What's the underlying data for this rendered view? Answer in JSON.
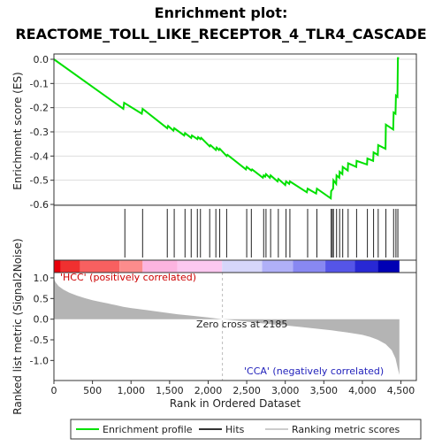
{
  "chart_data": {
    "type": "line",
    "title_line1": "Enrichment plot:",
    "title_line2": "REACTOME_TOLL_LIKE_RECEPTOR_4_TLR4_CASCADE",
    "es_panel": {
      "ylabel": "Enrichment score (ES)",
      "ylim": [
        -0.6,
        0.0
      ],
      "yticks": [
        "0.0",
        "-0.1",
        "-0.2",
        "-0.3",
        "-0.4",
        "-0.5",
        "-0.6"
      ],
      "grid": true,
      "series": [
        {
          "name": "Enrichment profile",
          "color": "#00e000",
          "x": [
            0,
            900,
            910,
            1140,
            1150,
            1470,
            1480,
            1550,
            1560,
            1690,
            1700,
            1780,
            1790,
            1860,
            1870,
            1900,
            1910,
            2020,
            2030,
            2100,
            2110,
            2140,
            2150,
            2240,
            2250,
            2490,
            2500,
            2560,
            2570,
            2710,
            2720,
            2740,
            2750,
            2800,
            2810,
            2900,
            2910,
            3000,
            3010,
            3050,
            3060,
            3280,
            3290,
            3400,
            3410,
            3590,
            3595,
            3620,
            3625,
            3660,
            3665,
            3700,
            3705,
            3740,
            3745,
            3810,
            3815,
            3920,
            3925,
            4060,
            4065,
            4140,
            4145,
            4200,
            4205,
            4300,
            4305,
            4400,
            4405,
            4430,
            4435,
            4455,
            4460,
            4475
          ],
          "y": [
            0.0,
            -0.205,
            -0.18,
            -0.225,
            -0.205,
            -0.285,
            -0.275,
            -0.295,
            -0.285,
            -0.315,
            -0.305,
            -0.325,
            -0.315,
            -0.33,
            -0.322,
            -0.33,
            -0.325,
            -0.36,
            -0.355,
            -0.375,
            -0.365,
            -0.375,
            -0.37,
            -0.4,
            -0.395,
            -0.455,
            -0.445,
            -0.46,
            -0.455,
            -0.49,
            -0.48,
            -0.485,
            -0.475,
            -0.49,
            -0.48,
            -0.505,
            -0.495,
            -0.52,
            -0.505,
            -0.515,
            -0.505,
            -0.55,
            -0.535,
            -0.555,
            -0.535,
            -0.575,
            -0.545,
            -0.535,
            -0.5,
            -0.515,
            -0.48,
            -0.49,
            -0.465,
            -0.475,
            -0.445,
            -0.46,
            -0.43,
            -0.445,
            -0.42,
            -0.435,
            -0.41,
            -0.42,
            -0.385,
            -0.395,
            -0.355,
            -0.37,
            -0.27,
            -0.29,
            -0.22,
            -0.225,
            -0.15,
            -0.155,
            0.005,
            0.005
          ]
        }
      ]
    },
    "hits_panel": {
      "hits": [
        920,
        1150,
        1470,
        1560,
        1700,
        1780,
        1860,
        1900,
        2020,
        2100,
        2150,
        2240,
        2500,
        2560,
        2720,
        2750,
        2810,
        2910,
        3010,
        3060,
        3290,
        3410,
        3595,
        3610,
        3625,
        3665,
        3705,
        3745,
        3815,
        3925,
        4065,
        4145,
        4205,
        4305,
        4405,
        4435,
        4460
      ]
    },
    "heat_strip": {
      "labels": [
        "'HCC' (positively correlated)",
        "'CCA' (negatively correlated)"
      ],
      "colors": [
        "#e8000a",
        "#f03030",
        "#f86060",
        "#fc8c8c",
        "#fcb4e0",
        "#fcc8f0",
        "#d6d6fa",
        "#b0b0f8",
        "#8888f2",
        "#5555e8",
        "#2828d4",
        "#0000b4"
      ],
      "stops": [
        0,
        90,
        340,
        850,
        1150,
        1600,
        2180,
        2700,
        3100,
        3520,
        3900,
        4200,
        4480
      ]
    },
    "metric_panel": {
      "ylabel": "Ranked list metric (Signal2Noise)",
      "ylim": [
        -1.4,
        1.0
      ],
      "yticks": [
        "1.0",
        "0.5",
        "0.0",
        "-0.5",
        "-1.0"
      ],
      "annotation": "Zero cross at 2185",
      "zero_cross": 2185,
      "fill_color": "#b4b4b4",
      "x": [
        0,
        20,
        60,
        120,
        200,
        300,
        400,
        500,
        600,
        700,
        800,
        900,
        1000,
        1200,
        1400,
        1600,
        1800,
        2000,
        2185,
        2400,
        2600,
        2800,
        3000,
        3200,
        3400,
        3600,
        3800,
        4000,
        4100,
        4200,
        4300,
        4380,
        4430,
        4460,
        4480
      ],
      "y": [
        0.98,
        0.9,
        0.8,
        0.72,
        0.64,
        0.57,
        0.51,
        0.46,
        0.42,
        0.38,
        0.34,
        0.3,
        0.27,
        0.22,
        0.17,
        0.12,
        0.08,
        0.04,
        0.0,
        -0.04,
        -0.08,
        -0.12,
        -0.15,
        -0.19,
        -0.23,
        -0.27,
        -0.32,
        -0.38,
        -0.43,
        -0.5,
        -0.6,
        -0.75,
        -0.95,
        -1.2,
        -1.35
      ]
    },
    "xaxis": {
      "label": "Rank in Ordered Dataset",
      "xlim": [
        0,
        4700
      ],
      "ticks": [
        "0",
        "500",
        "1,000",
        "1,500",
        "2,000",
        "2,500",
        "3,000",
        "3,500",
        "4,000",
        "4,500"
      ]
    },
    "legend": {
      "placement": "bottom",
      "items": [
        {
          "label": "Enrichment profile",
          "color": "#00e000"
        },
        {
          "label": "Hits",
          "color": "#333333"
        },
        {
          "label": "Ranking metric scores",
          "color": "#cccccc"
        }
      ]
    }
  }
}
